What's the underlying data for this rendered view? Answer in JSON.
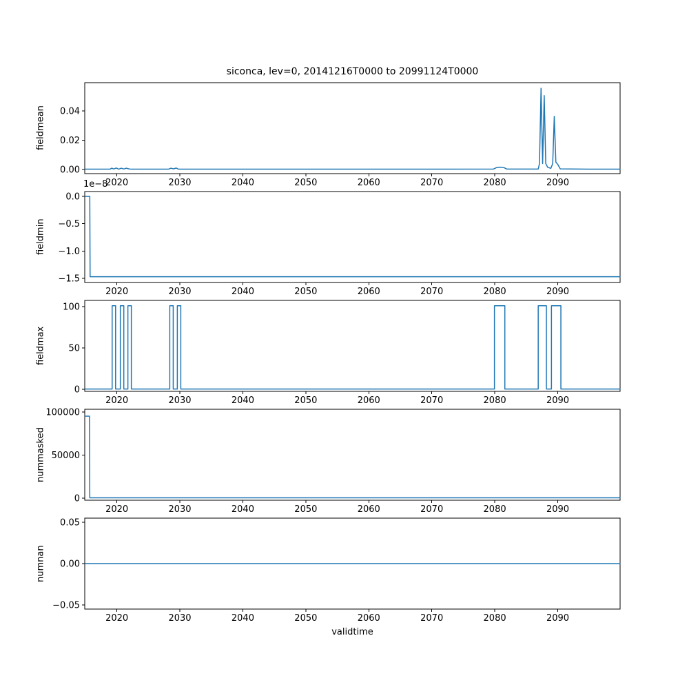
{
  "figure": {
    "title": "siconca, lev=0, 20141216T0000 to 20991124T0000",
    "xlabel": "validtime",
    "line_color": "#1f77b4",
    "xlim": [
      2014.9,
      2099.9
    ],
    "xticks": [
      2020,
      2030,
      2040,
      2050,
      2060,
      2070,
      2080,
      2090
    ],
    "xtick_labels": [
      "2020",
      "2030",
      "2040",
      "2050",
      "2060",
      "2070",
      "2080",
      "2090"
    ]
  },
  "chart_data": [
    {
      "type": "line",
      "ylabel": "fieldmean",
      "ylim": [
        -0.00283,
        0.0593
      ],
      "yticks": [
        0.0,
        0.02,
        0.04
      ],
      "ytick_labels": [
        "0.00",
        "0.02",
        "0.04"
      ],
      "x": [
        2014.96,
        2018.9,
        2019.2,
        2019.5,
        2019.9,
        2020.3,
        2020.7,
        2021.1,
        2021.5,
        2021.9,
        2022.3,
        2028.2,
        2028.6,
        2029.0,
        2029.4,
        2029.8,
        2035,
        2050,
        2065,
        2079.8,
        2080.3,
        2080.9,
        2081.5,
        2081.9,
        2086.9,
        2087.1,
        2087.35,
        2087.6,
        2087.85,
        2088.1,
        2088.4,
        2088.9,
        2089.2,
        2089.45,
        2089.7,
        2090.0,
        2090.4,
        2095,
        2099.9
      ],
      "y": [
        0.0002,
        0.0002,
        0.0009,
        0.0003,
        0.001,
        0.0002,
        0.0009,
        0.0003,
        0.0009,
        0.0004,
        0.0002,
        0.0002,
        0.0009,
        0.0004,
        0.001,
        0.0002,
        0.0002,
        0.0002,
        0.0002,
        0.0003,
        0.0013,
        0.0016,
        0.0012,
        0.0003,
        0.0003,
        0.004,
        0.0555,
        0.004,
        0.0505,
        0.004,
        0.0015,
        0.0008,
        0.004,
        0.0363,
        0.005,
        0.0035,
        0.0004,
        0.0002,
        0.0002
      ]
    },
    {
      "type": "line",
      "ylabel": "fieldmin",
      "offset_text": "1e−8",
      "y_unit_multiplier": 1e-08,
      "ylim": [
        -1.576,
        0.088
      ],
      "yticks": [
        0.0,
        -0.5,
        -1.0,
        -1.5
      ],
      "ytick_labels": [
        "0.0",
        "−0.5",
        "−1.0",
        "−1.5"
      ],
      "x": [
        2014.96,
        2015.7,
        2015.75,
        2099.9
      ],
      "y": [
        0.0,
        0.0,
        -1.47,
        -1.47
      ]
    },
    {
      "type": "line",
      "ylabel": "fieldmax",
      "ylim": [
        -2.5,
        107.5
      ],
      "yticks": [
        0,
        50,
        100
      ],
      "ytick_labels": [
        "0",
        "50",
        "100"
      ],
      "x": [
        2014.96,
        2019.25,
        2019.25,
        2019.8,
        2019.8,
        2020.55,
        2020.55,
        2021.1,
        2021.1,
        2021.75,
        2021.75,
        2022.3,
        2022.3,
        2028.4,
        2028.4,
        2028.95,
        2028.95,
        2029.6,
        2029.6,
        2030.15,
        2030.15,
        2079.95,
        2079.95,
        2081.6,
        2081.6,
        2086.9,
        2086.9,
        2088.2,
        2088.2,
        2089.0,
        2089.0,
        2090.5,
        2090.5,
        2099.9
      ],
      "y": [
        0.3,
        0.3,
        101,
        101,
        0.3,
        0.3,
        101,
        101,
        0.3,
        0.3,
        101,
        101,
        0.3,
        0.3,
        101,
        101,
        0.3,
        0.3,
        101,
        101,
        0.3,
        0.3,
        101,
        101,
        0.3,
        0.3,
        101,
        101,
        0.3,
        0.3,
        101,
        101,
        0.3,
        0.3
      ]
    },
    {
      "type": "line",
      "ylabel": "nummasked",
      "ylim": [
        -2400,
        103200
      ],
      "yticks": [
        0,
        50000,
        100000
      ],
      "ytick_labels": [
        "0",
        "50000",
        "100000"
      ],
      "x": [
        2014.96,
        2015.65,
        2015.7,
        2099.9
      ],
      "y": [
        95200,
        95200,
        400,
        400
      ]
    },
    {
      "type": "line",
      "ylabel": "numnan",
      "ylim": [
        -0.055,
        0.055
      ],
      "yticks": [
        -0.05,
        0.0,
        0.05
      ],
      "ytick_labels": [
        "−0.05",
        "0.00",
        "0.05"
      ],
      "x": [
        2014.96,
        2099.9
      ],
      "y": [
        0.0,
        0.0
      ]
    }
  ]
}
